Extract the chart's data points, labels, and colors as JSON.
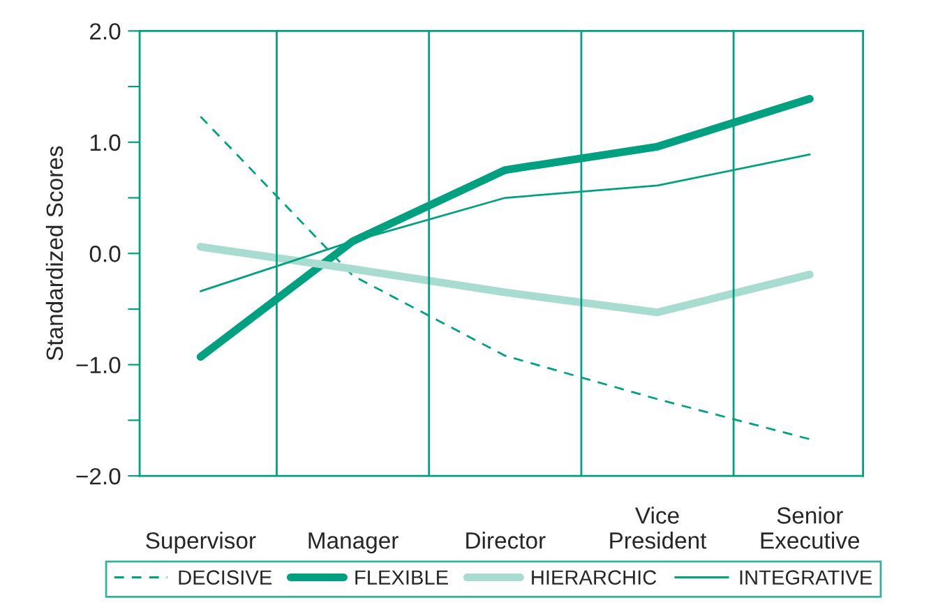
{
  "chart_data": {
    "type": "line",
    "ylabel": "Standardized Scores",
    "categories": [
      "Supervisor",
      "Manager",
      "Director",
      "Vice\nPresident",
      "Senior\nExecutive"
    ],
    "series": [
      {
        "name": "DECISIVE",
        "color": "#00a080",
        "line_style": "dashed",
        "values": [
          1.23,
          -0.2,
          -0.92,
          -1.31,
          -1.67
        ]
      },
      {
        "name": "FLEXIBLE",
        "color": "#00a080",
        "line_style": "solid",
        "values": [
          -0.93,
          0.11,
          0.75,
          0.96,
          1.39
        ]
      },
      {
        "name": "HIERARCHIC",
        "color": "#a8dcd0",
        "line_style": "solid",
        "values": [
          0.06,
          -0.14,
          -0.35,
          -0.53,
          -0.19
        ]
      },
      {
        "name": "INTEGRATIVE",
        "color": "#00a080",
        "line_style": "solid",
        "values": [
          -0.34,
          0.11,
          0.5,
          0.61,
          0.89
        ]
      }
    ],
    "ylim": [
      -2.0,
      2.0
    ],
    "yticks": [
      {
        "value": -2.0,
        "label": "−2.0"
      },
      {
        "value": -1.5,
        "label": null
      },
      {
        "value": -1.0,
        "label": "−1.0"
      },
      {
        "value": -0.5,
        "label": null
      },
      {
        "value": 0.0,
        "label": "0.0"
      },
      {
        "value": 0.5,
        "label": null
      },
      {
        "value": 1.0,
        "label": "1.0"
      },
      {
        "value": 1.5,
        "label": null
      },
      {
        "value": 2.0,
        "label": "2.0"
      }
    ],
    "grid": "x",
    "legend": "bottom",
    "marker": "none"
  }
}
